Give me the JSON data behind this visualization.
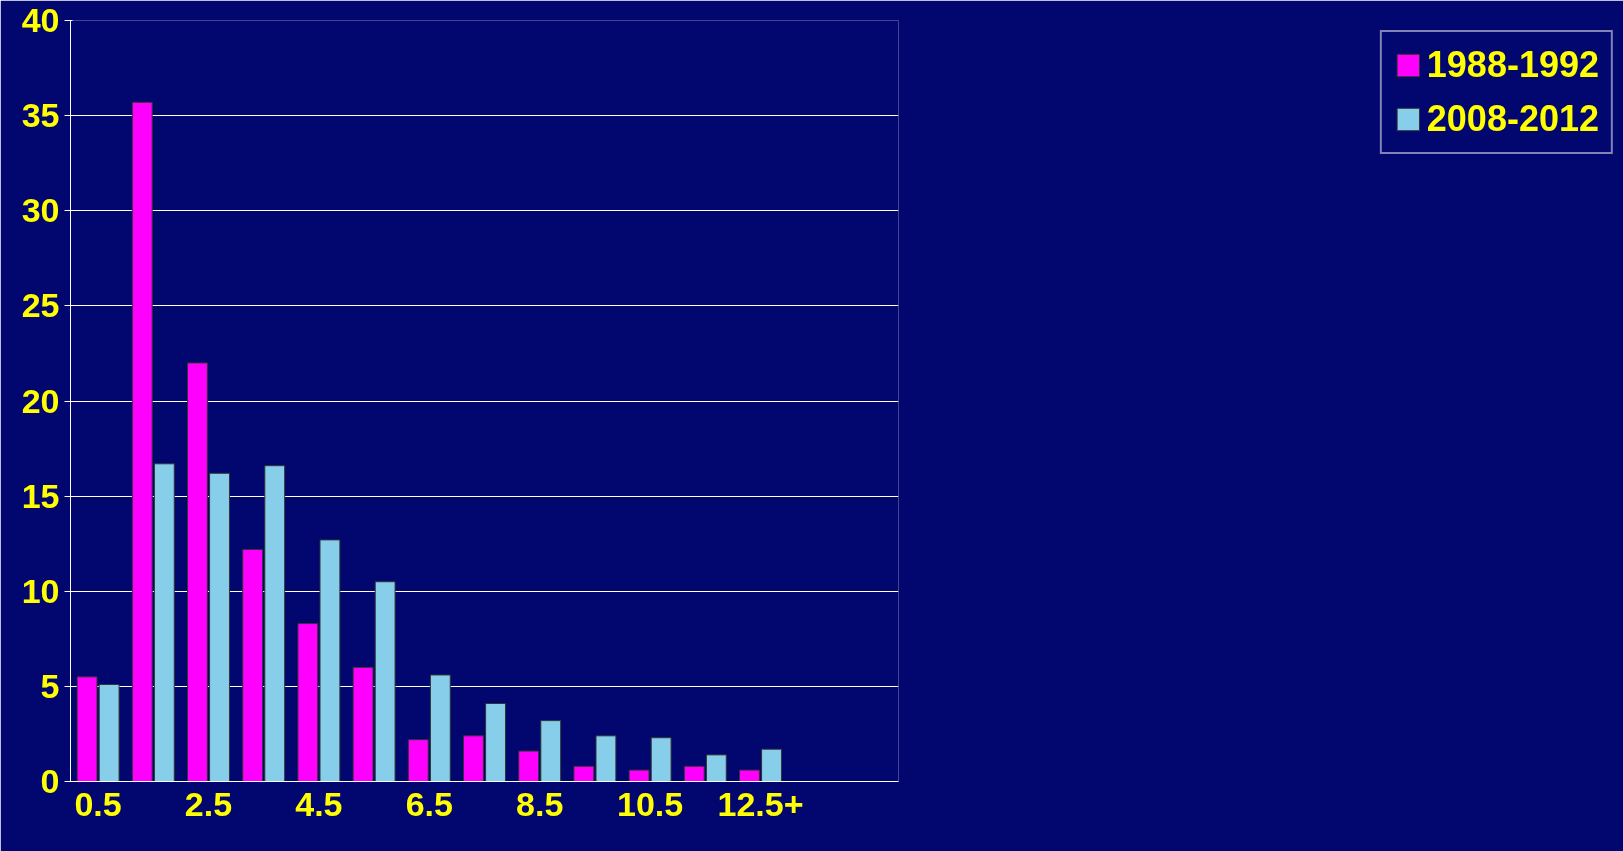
{
  "chart_data": {
    "type": "bar",
    "categories": [
      "0.5",
      null,
      "2.5",
      null,
      "4.5",
      null,
      "6.5",
      null,
      "8.5",
      null,
      "10.5",
      null,
      "12.5+",
      null,
      null
    ],
    "series": [
      {
        "name": "1988-1992",
        "color": "#ff00ff",
        "values": [
          5.5,
          35.7,
          22,
          12.2,
          8.3,
          6,
          2.2,
          2.4,
          1.6,
          0.8,
          0.6,
          0.8,
          0.6,
          null,
          null
        ]
      },
      {
        "name": "2008-2012",
        "color": "#87ceeb",
        "values": [
          5.1,
          16.7,
          16.2,
          16.6,
          12.7,
          10.5,
          5.6,
          4.1,
          3.2,
          2.4,
          2.3,
          1.4,
          1.7,
          null,
          null
        ]
      }
    ],
    "ylim": [
      0,
      40
    ],
    "yticks": [
      0,
      5,
      10,
      15,
      20,
      25,
      30,
      35,
      40
    ],
    "grid": "y",
    "legend": "right"
  }
}
